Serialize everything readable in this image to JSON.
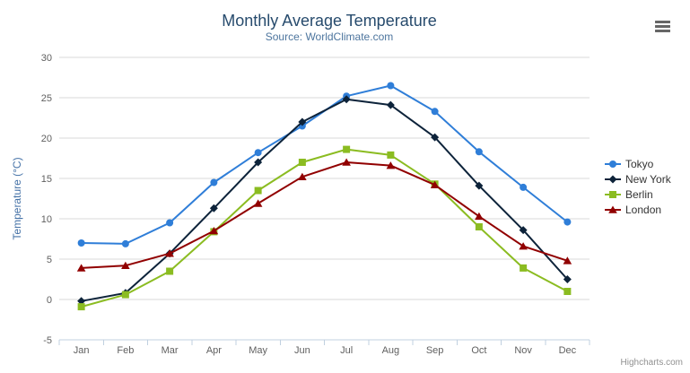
{
  "chart_data": {
    "type": "line",
    "title": "Monthly Average Temperature",
    "subtitle": "Source: WorldClimate.com",
    "categories": [
      "Jan",
      "Feb",
      "Mar",
      "Apr",
      "May",
      "Jun",
      "Jul",
      "Aug",
      "Sep",
      "Oct",
      "Nov",
      "Dec"
    ],
    "xlabel": "",
    "ylabel": "Temperature (°C)",
    "ylim": [
      -5,
      30
    ],
    "ytick_step": 5,
    "grid": true,
    "legend_position": "right",
    "series": [
      {
        "name": "Tokyo",
        "color": "#2f7ed8",
        "marker": "circle",
        "values": [
          7.0,
          6.9,
          9.5,
          14.5,
          18.2,
          21.5,
          25.2,
          26.5,
          23.3,
          18.3,
          13.9,
          9.6
        ]
      },
      {
        "name": "New York",
        "color": "#0d233a",
        "marker": "diamond",
        "values": [
          -0.2,
          0.8,
          5.7,
          11.3,
          17.0,
          22.0,
          24.8,
          24.1,
          20.1,
          14.1,
          8.6,
          2.5
        ]
      },
      {
        "name": "Berlin",
        "color": "#8bbc21",
        "marker": "square",
        "values": [
          -0.9,
          0.6,
          3.5,
          8.4,
          13.5,
          17.0,
          18.6,
          17.9,
          14.3,
          9.0,
          3.9,
          1.0
        ]
      },
      {
        "name": "London",
        "color": "#910000",
        "marker": "triangle",
        "values": [
          3.9,
          4.2,
          5.7,
          8.5,
          11.9,
          15.2,
          17.0,
          16.6,
          14.2,
          10.3,
          6.6,
          4.8
        ]
      }
    ]
  },
  "credit": "Highcharts.com",
  "icons": {
    "menu": "hamburger-icon"
  },
  "styles": {
    "title_color": "#274b6d",
    "subtitle_color": "#4d759e",
    "axis_label_color": "#606060",
    "axis_title_color": "#4572a7",
    "grid_color": "#d8d8d8",
    "axis_line_color": "#c0d0e0",
    "legend_text_color": "#333333",
    "credit_color": "#909090",
    "menu_icon_color": "#666666"
  }
}
